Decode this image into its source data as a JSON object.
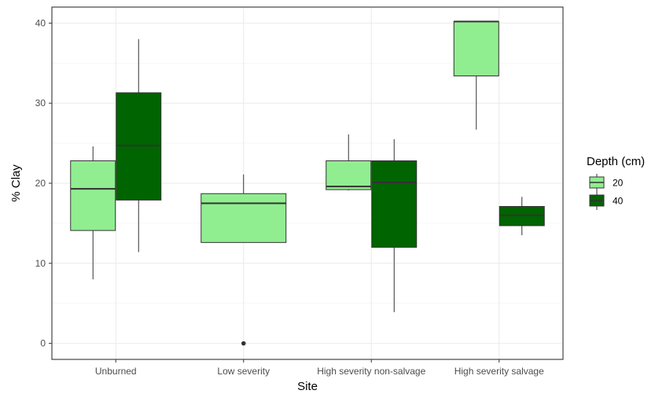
{
  "chart_data": {
    "type": "boxplot",
    "title": "",
    "xlabel": "Site",
    "ylabel": "% Clay",
    "ylim": [
      -2,
      42
    ],
    "y_ticks": [
      0,
      10,
      20,
      30,
      40
    ],
    "y_tick_labels": [
      "0",
      "10",
      "20",
      "30",
      "40"
    ],
    "grid": true,
    "legend_position": "right",
    "legend_title": "Depth (cm)",
    "categories": [
      "Unburned",
      "Low severity",
      "High severity non-salvage",
      "High severity salvage"
    ],
    "series": [
      {
        "name": "20",
        "color": "#90ee90",
        "boxes": [
          {
            "category": "Unburned",
            "min": 8.0,
            "q1": 14.1,
            "median": 19.3,
            "q3": 22.8,
            "max": 24.6,
            "outliers": []
          },
          {
            "category": "Low severity",
            "min": 12.6,
            "q1": 12.6,
            "median": 17.5,
            "q3": 18.7,
            "max": 21.1,
            "outliers": [
              0
            ]
          },
          {
            "category": "High severity non-salvage",
            "min": 19.1,
            "q1": 19.2,
            "median": 19.6,
            "q3": 22.8,
            "max": 26.1,
            "outliers": []
          },
          {
            "category": "High severity salvage",
            "min": 26.7,
            "q1": 33.4,
            "median": 40.2,
            "q3": 40.2,
            "max": 40.2,
            "outliers": []
          }
        ]
      },
      {
        "name": "40",
        "color": "#006400",
        "boxes": [
          {
            "category": "Unburned",
            "min": 11.4,
            "q1": 17.9,
            "median": 24.7,
            "q3": 31.3,
            "max": 38.0,
            "outliers": []
          },
          {
            "category": "High severity non-salvage",
            "min": 3.9,
            "q1": 12.0,
            "median": 20.1,
            "q3": 22.8,
            "max": 25.5,
            "outliers": []
          },
          {
            "category": "High severity salvage",
            "min": 13.5,
            "q1": 14.7,
            "median": 16.0,
            "q3": 17.1,
            "max": 18.3,
            "outliers": []
          }
        ]
      }
    ]
  }
}
